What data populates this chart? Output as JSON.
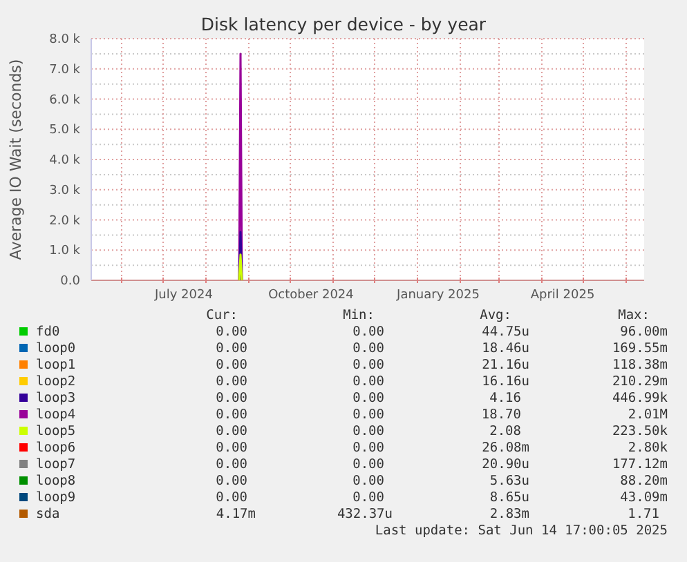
{
  "chart_data": {
    "type": "line",
    "title": "Disk latency per device - by year",
    "ylabel": "Average IO Wait (seconds)",
    "x": [
      "2024-08-25",
      "2024-08-26",
      "2024-08-27"
    ],
    "xlim": [
      "2024-05-10",
      "2025-06-14"
    ],
    "xticks": [
      {
        "value": "2024-06-01",
        "label": null
      },
      {
        "value": "2024-07-01",
        "label": null
      },
      {
        "value": "2024-07-16",
        "label": "July 2024"
      },
      {
        "value": "2024-08-01",
        "label": null
      },
      {
        "value": "2024-09-01",
        "label": null
      },
      {
        "value": "2024-10-01",
        "label": null
      },
      {
        "value": "2024-10-16",
        "label": "October 2024"
      },
      {
        "value": "2024-11-01",
        "label": null
      },
      {
        "value": "2024-12-01",
        "label": null
      },
      {
        "value": "2025-01-01",
        "label": null
      },
      {
        "value": "2025-01-16",
        "label": "January 2025"
      },
      {
        "value": "2025-02-01",
        "label": null
      },
      {
        "value": "2025-03-01",
        "label": null
      },
      {
        "value": "2025-04-01",
        "label": null
      },
      {
        "value": "2025-04-16",
        "label": "April 2025"
      },
      {
        "value": "2025-05-01",
        "label": null
      },
      {
        "value": "2025-06-01",
        "label": null
      }
    ],
    "ylim": [
      0,
      8000
    ],
    "yticks": [
      {
        "value": 0,
        "label": "0.0"
      },
      {
        "value": 500,
        "label": null
      },
      {
        "value": 1000,
        "label": "1.0 k"
      },
      {
        "value": 1500,
        "label": null
      },
      {
        "value": 2000,
        "label": "2.0 k"
      },
      {
        "value": 2500,
        "label": null
      },
      {
        "value": 3000,
        "label": "3.0 k"
      },
      {
        "value": 3500,
        "label": null
      },
      {
        "value": 4000,
        "label": "4.0 k"
      },
      {
        "value": 4500,
        "label": null
      },
      {
        "value": 5000,
        "label": "5.0 k"
      },
      {
        "value": 5500,
        "label": null
      },
      {
        "value": 6000,
        "label": "6.0 k"
      },
      {
        "value": 6500,
        "label": null
      },
      {
        "value": 7000,
        "label": "7.0 k"
      },
      {
        "value": 7500,
        "label": null
      },
      {
        "value": 8000,
        "label": "8.0 k"
      }
    ],
    "grid": true,
    "legend": "bottom",
    "series": [
      {
        "name": "fd0",
        "color": "#00cc00",
        "values": [
          null,
          null,
          null
        ]
      },
      {
        "name": "loop0",
        "color": "#0066b3",
        "values": [
          null,
          null,
          null
        ]
      },
      {
        "name": "loop1",
        "color": "#ff8000",
        "values": [
          null,
          null,
          null
        ]
      },
      {
        "name": "loop2",
        "color": "#ffcc00",
        "values": [
          null,
          null,
          null
        ]
      },
      {
        "name": "loop3",
        "color": "#330099",
        "values": [
          0,
          1600,
          0
        ]
      },
      {
        "name": "loop4",
        "color": "#990099",
        "values": [
          0,
          7500,
          0
        ]
      },
      {
        "name": "loop5",
        "color": "#ccff00",
        "values": [
          0,
          850,
          0
        ]
      },
      {
        "name": "loop6",
        "color": "#ff0000",
        "values": [
          null,
          null,
          null
        ]
      },
      {
        "name": "loop7",
        "color": "#808080",
        "values": [
          null,
          null,
          null
        ]
      },
      {
        "name": "loop8",
        "color": "#008f00",
        "values": [
          null,
          null,
          null
        ]
      },
      {
        "name": "loop9",
        "color": "#00487d",
        "values": [
          null,
          null,
          null
        ]
      },
      {
        "name": "sda",
        "color": "#b35a00",
        "values": [
          null,
          null,
          null
        ]
      }
    ],
    "annotations": [
      "Cur:",
      "Min:",
      "Avg:",
      "Max:",
      "0.00",
      "0.00",
      "44.75u",
      "96.00m",
      "0.00",
      "0.00",
      "18.46u",
      "169.55m",
      "0.00",
      "0.00",
      "21.16u",
      "118.38m",
      "0.00",
      "0.00",
      "16.16u",
      "210.29m",
      "0.00",
      "0.00",
      "4.16",
      "446.99k",
      "0.00",
      "0.00",
      "18.70",
      "2.01M",
      "0.00",
      "0.00",
      "2.08",
      "223.50k",
      "0.00",
      "0.00",
      "26.08m",
      "2.80k",
      "0.00",
      "0.00",
      "20.90u",
      "177.12m",
      "0.00",
      "0.00",
      "5.63u",
      "88.20m",
      "0.00",
      "0.00",
      "8.65u",
      "43.09m",
      "4.17m",
      "432.37u",
      "2.83m",
      "1.71",
      "Last update: Sat Jun 14 17:00:05 2025"
    ]
  }
}
